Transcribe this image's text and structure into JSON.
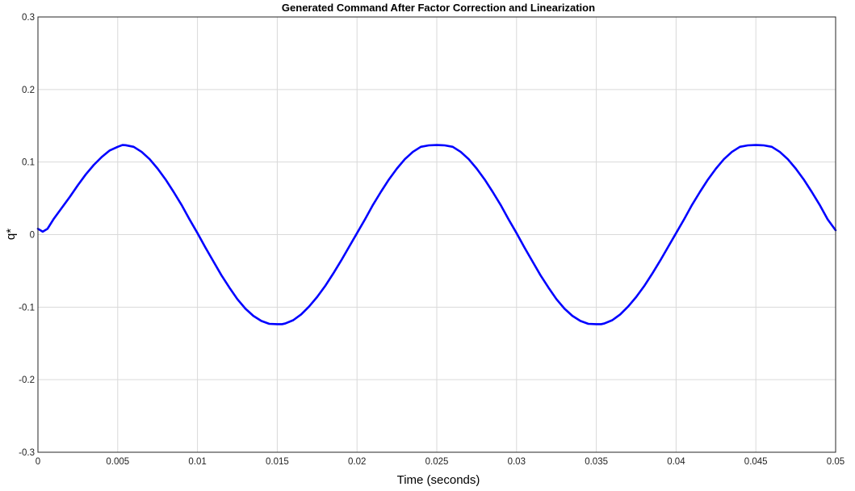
{
  "chart_data": {
    "type": "line",
    "title": "Generated Command After Factor Correction and Linearization",
    "xlabel": "Time (seconds)",
    "ylabel": "q*",
    "xlim": [
      0,
      0.05
    ],
    "ylim": [
      -0.3,
      0.3
    ],
    "grid": true,
    "x_ticks": [
      0,
      0.005,
      0.01,
      0.015,
      0.02,
      0.025,
      0.03,
      0.035,
      0.04,
      0.045,
      0.05
    ],
    "x_tick_labels": [
      "0",
      "0.005",
      "0.01",
      "0.015",
      "0.02",
      "0.025",
      "0.03",
      "0.035",
      "0.04",
      "0.045",
      "0.05"
    ],
    "y_ticks": [
      -0.3,
      -0.2,
      -0.1,
      0,
      0.1,
      0.2,
      0.3
    ],
    "y_tick_labels": [
      "-0.3",
      "-0.2",
      "-0.1",
      "0",
      "0.1",
      "0.2",
      "0.3"
    ],
    "series": [
      {
        "color": "#0000ff",
        "x": [
          0,
          0.0003,
          0.0006,
          0.001,
          0.0015,
          0.002,
          0.0025,
          0.003,
          0.0035,
          0.004,
          0.0045,
          0.005,
          0.0053,
          0.0055,
          0.006,
          0.0065,
          0.007,
          0.0075,
          0.008,
          0.0085,
          0.009,
          0.0095,
          0.01,
          0.0105,
          0.011,
          0.0115,
          0.012,
          0.0125,
          0.013,
          0.0135,
          0.014,
          0.0145,
          0.015,
          0.0153,
          0.0155,
          0.016,
          0.0165,
          0.017,
          0.0175,
          0.018,
          0.0185,
          0.019,
          0.0195,
          0.02,
          0.0205,
          0.021,
          0.0215,
          0.022,
          0.0225,
          0.023,
          0.0235,
          0.024,
          0.0245,
          0.025,
          0.0253,
          0.0255,
          0.026,
          0.0265,
          0.027,
          0.0275,
          0.028,
          0.0285,
          0.029,
          0.0295,
          0.03,
          0.0305,
          0.031,
          0.0315,
          0.032,
          0.0325,
          0.033,
          0.0335,
          0.034,
          0.0345,
          0.035,
          0.0353,
          0.0355,
          0.036,
          0.0365,
          0.037,
          0.0375,
          0.038,
          0.0385,
          0.039,
          0.0395,
          0.04,
          0.0405,
          0.041,
          0.0415,
          0.042,
          0.0425,
          0.043,
          0.0435,
          0.044,
          0.0445,
          0.045,
          0.0453,
          0.0455,
          0.046,
          0.0465,
          0.047,
          0.0475,
          0.048,
          0.0485,
          0.049,
          0.0495,
          0.05
        ],
        "y": [
          0.008,
          0.004,
          0.008,
          0.022,
          0.037,
          0.052,
          0.068,
          0.083,
          0.096,
          0.107,
          0.116,
          0.121,
          0.1235,
          0.1232,
          0.121,
          0.114,
          0.104,
          0.091,
          0.076,
          0.059,
          0.041,
          0.021,
          0.002,
          -0.018,
          -0.037,
          -0.056,
          -0.073,
          -0.089,
          -0.102,
          -0.112,
          -0.119,
          -0.123,
          -0.1235,
          -0.1235,
          -0.1225,
          -0.118,
          -0.11,
          -0.099,
          -0.086,
          -0.071,
          -0.054,
          -0.036,
          -0.017,
          0.002,
          0.021,
          0.041,
          0.059,
          0.076,
          0.091,
          0.104,
          0.114,
          0.121,
          0.123,
          0.1235,
          0.1232,
          0.123,
          0.121,
          0.114,
          0.104,
          0.091,
          0.076,
          0.059,
          0.041,
          0.021,
          0.002,
          -0.018,
          -0.037,
          -0.056,
          -0.073,
          -0.089,
          -0.102,
          -0.112,
          -0.119,
          -0.123,
          -0.1235,
          -0.1235,
          -0.1225,
          -0.118,
          -0.11,
          -0.099,
          -0.086,
          -0.071,
          -0.054,
          -0.036,
          -0.017,
          0.002,
          0.021,
          0.041,
          0.059,
          0.076,
          0.091,
          0.104,
          0.114,
          0.121,
          0.123,
          0.1235,
          0.1232,
          0.123,
          0.121,
          0.114,
          0.104,
          0.091,
          0.076,
          0.059,
          0.041,
          0.021,
          0.006
        ]
      }
    ]
  }
}
